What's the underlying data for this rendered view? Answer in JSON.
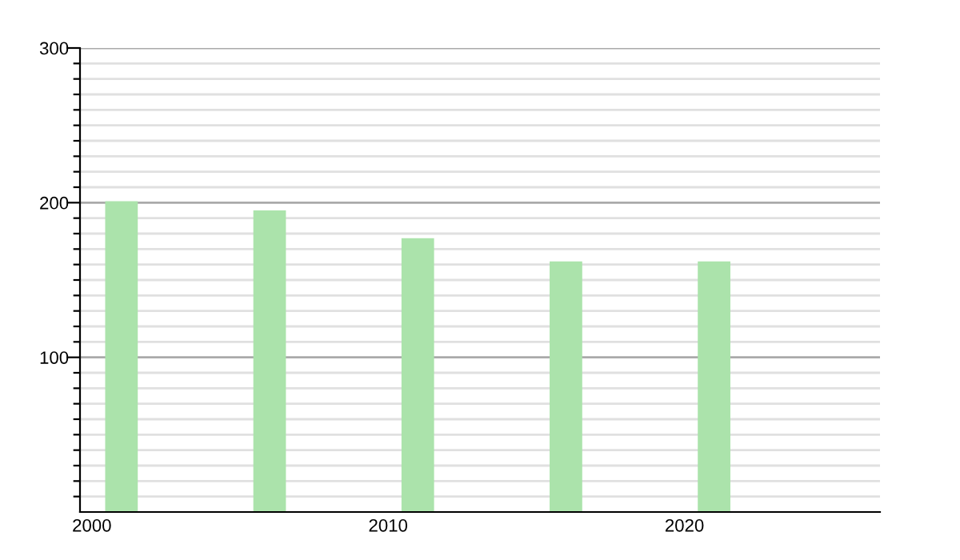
{
  "chart_data": {
    "type": "bar",
    "x": [
      2001,
      2006,
      2011,
      2016,
      2021
    ],
    "values": [
      201,
      195,
      177,
      162,
      162
    ],
    "color": "#abe3ab",
    "xlim": [
      1999.6,
      2026.6
    ],
    "xticks": [
      2000,
      2010,
      2020
    ],
    "ylim": [
      0,
      300
    ],
    "yticks": [
      {
        "value": 10,
        "label": null
      },
      {
        "value": 20,
        "label": null
      },
      {
        "value": 30,
        "label": null
      },
      {
        "value": 40,
        "label": null
      },
      {
        "value": 50,
        "label": null
      },
      {
        "value": 60,
        "label": null
      },
      {
        "value": 70,
        "label": null
      },
      {
        "value": 80,
        "label": null
      },
      {
        "value": 90,
        "label": null
      },
      100,
      {
        "value": 110,
        "label": null
      },
      {
        "value": 120,
        "label": null
      },
      {
        "value": 130,
        "label": null
      },
      {
        "value": 140,
        "label": null
      },
      {
        "value": 150,
        "label": null
      },
      {
        "value": 160,
        "label": null
      },
      {
        "value": 170,
        "label": null
      },
      {
        "value": 180,
        "label": null
      },
      {
        "value": 190,
        "label": null
      },
      200,
      {
        "value": 210,
        "label": null
      },
      {
        "value": 220,
        "label": null
      },
      {
        "value": 230,
        "label": null
      },
      {
        "value": 240,
        "label": null
      },
      {
        "value": 250,
        "label": null
      },
      {
        "value": 260,
        "label": null
      },
      {
        "value": 270,
        "label": null
      },
      {
        "value": 280,
        "label": null
      },
      {
        "value": 290,
        "label": null
      },
      300
    ],
    "grid": "y"
  }
}
